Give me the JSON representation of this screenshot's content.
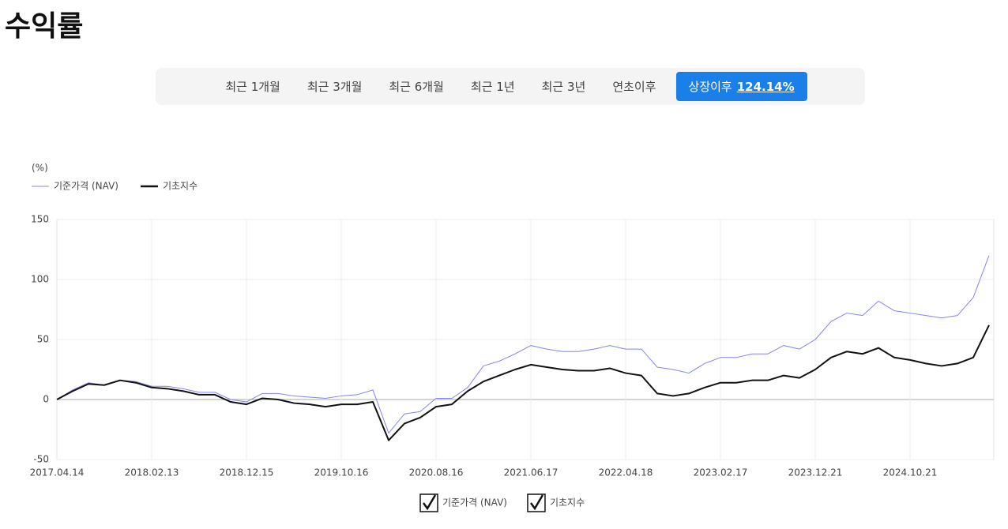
{
  "header": {
    "title": "수익률"
  },
  "tabs": [
    "최근 1개월",
    "최근 3개월",
    "최근 6개월",
    "최근 1년",
    "최근 3년",
    "연초이후"
  ],
  "active_tab": {
    "label": "상장이후",
    "value": "124.14%"
  },
  "chart_data": {
    "type": "line",
    "y_label": "(%)",
    "categories": [
      "2017.04.14",
      null,
      null,
      null,
      null,
      null,
      "2018.02.13",
      null,
      null,
      null,
      null,
      null,
      "2018.12.15",
      null,
      null,
      null,
      null,
      null,
      "2019.10.16",
      null,
      null,
      null,
      null,
      null,
      "2020.08.16",
      null,
      null,
      null,
      null,
      null,
      "2021.06.17",
      null,
      null,
      null,
      null,
      null,
      "2022.04.18",
      null,
      null,
      null,
      null,
      null,
      "2023.02.17",
      null,
      null,
      null,
      null,
      null,
      "2023.12.21",
      null,
      null,
      null,
      null,
      null,
      "2024.10.21",
      null,
      null,
      null,
      null,
      null
    ],
    "series": [
      {
        "name": "기준가격 (NAV)",
        "color": "#8484ee",
        "values": [
          0,
          8,
          14,
          12,
          16,
          15,
          11,
          11,
          9,
          6,
          6,
          0,
          -2,
          5,
          5,
          3,
          2,
          1,
          3,
          4,
          8,
          -28,
          -12,
          -10,
          1,
          1,
          10,
          28,
          32,
          38,
          45,
          42,
          40,
          40,
          42,
          45,
          42,
          42,
          27,
          25,
          22,
          30,
          35,
          35,
          38,
          38,
          45,
          42,
          50,
          65,
          72,
          70,
          82,
          74,
          72,
          70,
          68,
          70,
          85,
          120
        ]
      },
      {
        "name": "기초지수",
        "color": "#111111",
        "values": [
          0,
          7,
          13,
          12,
          16,
          14,
          10,
          9,
          7,
          4,
          4,
          -2,
          -4,
          1,
          0,
          -3,
          -4,
          -6,
          -4,
          -4,
          -2,
          -34,
          -20,
          -15,
          -6,
          -4,
          7,
          15,
          20,
          25,
          29,
          27,
          25,
          24,
          24,
          26,
          22,
          20,
          5,
          3,
          5,
          10,
          14,
          14,
          16,
          16,
          20,
          18,
          25,
          35,
          40,
          38,
          43,
          35,
          33,
          30,
          28,
          30,
          35,
          62
        ]
      }
    ],
    "ylim": [
      -50,
      150
    ],
    "yticks": [
      -50,
      0,
      50,
      100,
      150
    ],
    "grid": true
  }
}
